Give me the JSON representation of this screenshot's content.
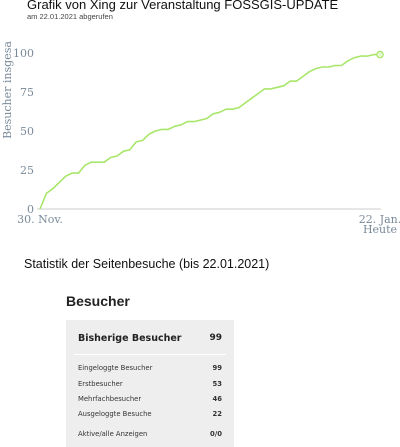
{
  "header": {
    "title": "Grafik von Xing zur Veranstaltung FOSSGIS-UPDATE",
    "subtitle": "am 22.01.2021 abgerufen"
  },
  "chart_data": {
    "type": "line",
    "ylabel": "Besucher insgesa",
    "x_tick_labels": [
      "30. Nov.",
      "22. Jan."
    ],
    "x_end_extra_label": "Heute",
    "yticks": [
      0,
      25,
      50,
      75,
      100
    ],
    "ylim": [
      0,
      100
    ],
    "xlim": [
      0,
      53
    ],
    "grid": false,
    "line_color": "#a8e66a",
    "series": [
      {
        "x": [
          0,
          1,
          2,
          3,
          4,
          5,
          6,
          7,
          8,
          9,
          10,
          11,
          12,
          13,
          14,
          15,
          16,
          17,
          18,
          19,
          20,
          21,
          22,
          23,
          24,
          25,
          26,
          27,
          28,
          29,
          30,
          31,
          32,
          33,
          34,
          35,
          36,
          37,
          38,
          39,
          40,
          41,
          42,
          43,
          44,
          45,
          46,
          47,
          48,
          49,
          50,
          51,
          52,
          53
        ],
        "y": [
          0,
          10,
          13,
          17,
          21,
          23,
          23,
          28,
          30,
          30,
          30,
          33,
          34,
          37,
          38,
          43,
          44,
          48,
          50,
          51,
          51,
          53,
          54,
          56,
          56,
          57,
          58,
          61,
          62,
          64,
          64,
          65,
          68,
          71,
          74,
          77,
          77,
          78,
          79,
          82,
          82,
          85,
          88,
          90,
          91,
          91,
          92,
          92,
          95,
          97,
          98,
          98,
          99,
          99
        ]
      }
    ],
    "end_marker": "circle"
  },
  "section_title": "Statistik der Seitenbesuche (bis 22.01.2021)",
  "stats": {
    "heading": "Besucher",
    "main_row": {
      "label": "Bisherige Besucher",
      "value": "99"
    },
    "rows": [
      {
        "label": "Eingeloggte Besucher",
        "value": "99"
      },
      {
        "label": "Erstbesucher",
        "value": "53"
      },
      {
        "label": "Mehrfachbesucher",
        "value": "46"
      },
      {
        "label": "Ausgeloggte Besuche",
        "value": "22"
      },
      {
        "label": "Aktive/alle Anzeigen",
        "value": "0/0"
      }
    ]
  }
}
